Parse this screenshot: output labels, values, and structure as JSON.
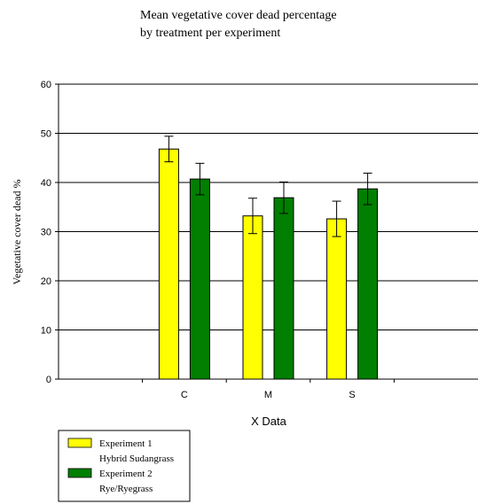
{
  "chart_data": {
    "type": "bar",
    "title_lines": [
      "Mean vegetative cover dead percentage",
      "by treatment per experiment"
    ],
    "xlabel": "X Data",
    "ylabel": "Vegetative cover dead %",
    "categories": [
      "C",
      "M",
      "S"
    ],
    "ylim": [
      0,
      60
    ],
    "yticks": [
      0,
      10,
      20,
      30,
      40,
      50,
      60
    ],
    "grid": true,
    "legend_position": "bottom-left",
    "series": [
      {
        "label_lines": [
          "Experiment 1",
          "Hybrid Sudangrass"
        ],
        "color": "#ffff00",
        "values": [
          46.8,
          33.2,
          32.6
        ],
        "errors": [
          2.6,
          3.6,
          3.6
        ]
      },
      {
        "label_lines": [
          "Experiment 2",
          "Rye/Ryegrass"
        ],
        "color": "#007f00",
        "values": [
          40.7,
          36.9,
          38.7
        ],
        "errors": [
          3.2,
          3.2,
          3.2
        ]
      }
    ]
  }
}
